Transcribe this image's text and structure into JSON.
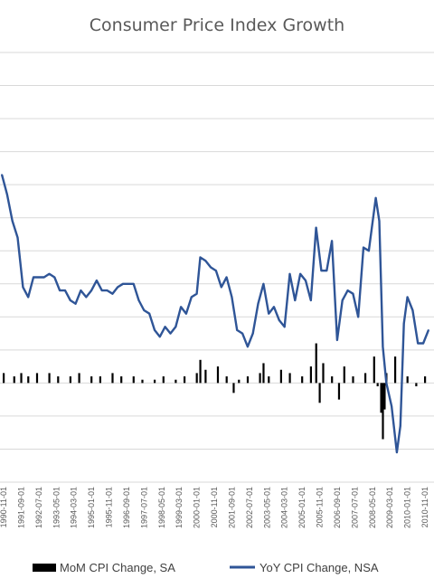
{
  "chart_data": {
    "type": "bar+line",
    "title": "Consumer Price Index Growth",
    "xlabel": "",
    "ylabel": "",
    "grid": true,
    "legend_position": "bottom",
    "colors": {
      "mom": "#000000",
      "yoy": "#2F5597",
      "grid": "#d9d9d9",
      "text": "#595959"
    },
    "ylim": [
      -3,
      10
    ],
    "x_tick_labels": [
      "1990-11-01",
      "1991-09-01",
      "1992-07-01",
      "1993-05-01",
      "1994-03-01",
      "1995-01-01",
      "1995-11-01",
      "1996-09-01",
      "1997-07-01",
      "1998-05-01",
      "1999-03-01",
      "2000-01-01",
      "2000-11-01",
      "2001-09-01",
      "2002-07-01",
      "2003-05-01",
      "2004-03-01",
      "2005-01-01",
      "2005-11-01",
      "2006-09-01",
      "2007-07-01",
      "2008-05-01",
      "2009-03-01",
      "2010-01-01",
      "2010-11-01"
    ],
    "series": [
      {
        "name": "MoM CPI Change, SA",
        "type": "bar",
        "x": [
          "1990-11",
          "1991-05",
          "1991-09",
          "1992-01",
          "1992-06",
          "1993-01",
          "1993-06",
          "1994-01",
          "1994-06",
          "1995-01",
          "1995-06",
          "1996-01",
          "1996-06",
          "1997-01",
          "1997-06",
          "1998-01",
          "1998-06",
          "1999-01",
          "1999-06",
          "2000-01",
          "2000-03",
          "2000-06",
          "2001-01",
          "2001-06",
          "2001-10",
          "2002-01",
          "2002-06",
          "2003-01",
          "2003-03",
          "2003-06",
          "2004-01",
          "2004-06",
          "2005-01",
          "2005-06",
          "2005-09",
          "2005-11",
          "2006-01",
          "2006-06",
          "2006-10",
          "2007-01",
          "2007-06",
          "2008-01",
          "2008-06",
          "2008-08",
          "2008-10",
          "2008-11",
          "2008-12",
          "2009-01",
          "2009-06",
          "2010-01",
          "2010-06",
          "2010-11"
        ],
        "values": [
          0.3,
          0.2,
          0.3,
          0.2,
          0.3,
          0.3,
          0.2,
          0.2,
          0.3,
          0.2,
          0.2,
          0.3,
          0.2,
          0.2,
          0.1,
          0.1,
          0.2,
          0.1,
          0.2,
          0.3,
          0.7,
          0.4,
          0.5,
          0.2,
          -0.3,
          0.1,
          0.2,
          0.3,
          0.6,
          0.2,
          0.4,
          0.3,
          0.2,
          0.5,
          1.2,
          -0.6,
          0.6,
          0.2,
          -0.5,
          0.5,
          0.2,
          0.3,
          0.8,
          -0.1,
          -0.9,
          -1.7,
          -0.8,
          0.3,
          0.8,
          0.2,
          -0.1,
          0.2
        ]
      },
      {
        "name": "YoY CPI Change, NSA",
        "type": "line",
        "x": [
          "1990-10",
          "1991-01",
          "1991-04",
          "1991-07",
          "1991-10",
          "1992-01",
          "1992-04",
          "1992-07",
          "1992-10",
          "1993-01",
          "1993-04",
          "1993-07",
          "1993-10",
          "1994-01",
          "1994-04",
          "1994-07",
          "1994-10",
          "1995-01",
          "1995-04",
          "1995-07",
          "1995-10",
          "1996-01",
          "1996-04",
          "1996-07",
          "1996-10",
          "1997-01",
          "1997-04",
          "1997-07",
          "1997-10",
          "1998-01",
          "1998-04",
          "1998-07",
          "1998-10",
          "1999-01",
          "1999-04",
          "1999-07",
          "1999-10",
          "2000-01",
          "2000-03",
          "2000-06",
          "2000-09",
          "2000-12",
          "2001-03",
          "2001-06",
          "2001-09",
          "2001-12",
          "2002-03",
          "2002-06",
          "2002-09",
          "2002-12",
          "2003-03",
          "2003-06",
          "2003-09",
          "2003-12",
          "2004-03",
          "2004-06",
          "2004-09",
          "2004-12",
          "2005-03",
          "2005-06",
          "2005-09",
          "2005-12",
          "2006-03",
          "2006-06",
          "2006-09",
          "2006-12",
          "2007-03",
          "2007-06",
          "2007-09",
          "2007-12",
          "2008-03",
          "2008-07",
          "2008-09",
          "2008-11",
          "2009-01",
          "2009-04",
          "2009-07",
          "2009-09",
          "2009-11",
          "2010-01",
          "2010-04",
          "2010-07",
          "2010-10",
          "2011-01"
        ],
        "values": [
          6.3,
          5.7,
          4.9,
          4.4,
          2.9,
          2.6,
          3.2,
          3.2,
          3.2,
          3.3,
          3.2,
          2.8,
          2.8,
          2.5,
          2.4,
          2.8,
          2.6,
          2.8,
          3.1,
          2.8,
          2.8,
          2.7,
          2.9,
          3.0,
          3.0,
          3.0,
          2.5,
          2.2,
          2.1,
          1.6,
          1.4,
          1.7,
          1.5,
          1.7,
          2.3,
          2.1,
          2.6,
          2.7,
          3.8,
          3.7,
          3.5,
          3.4,
          2.9,
          3.2,
          2.6,
          1.6,
          1.5,
          1.1,
          1.5,
          2.4,
          3.0,
          2.1,
          2.3,
          1.9,
          1.7,
          3.3,
          2.5,
          3.3,
          3.1,
          2.5,
          4.7,
          3.4,
          3.4,
          4.3,
          1.3,
          2.5,
          2.8,
          2.7,
          2.0,
          4.1,
          4.0,
          5.6,
          4.9,
          1.1,
          0.0,
          -0.7,
          -2.1,
          -1.3,
          1.8,
          2.6,
          2.2,
          1.2,
          1.2,
          1.6
        ]
      }
    ]
  }
}
